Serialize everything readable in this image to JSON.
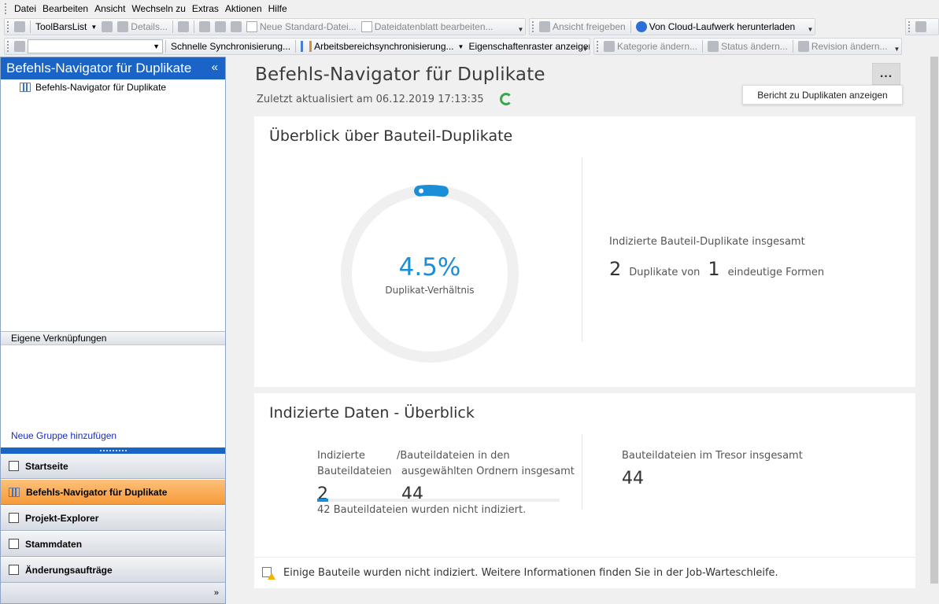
{
  "menu": [
    "Datei",
    "Bearbeiten",
    "Ansicht",
    "Wechseln zu",
    "Extras",
    "Aktionen",
    "Hilfe"
  ],
  "toolbar1": {
    "toolbars_list": "ToolBarsList",
    "details": "Details...",
    "new_standard_file": "Neue Standard-Datei...",
    "edit_datasheet": "Dateidatenblatt bearbeiten...",
    "share_view": "Ansicht freigeben",
    "download_cloud": "Von Cloud-Laufwerk herunterladen"
  },
  "toolbar2": {
    "quick_sync": "Schnelle Synchronisierung...",
    "workspace_sync": "Arbeitsbereichsynchronisierung...",
    "property_grid": "Eigenschaftenraster anzeigen",
    "change_category": "Kategorie ändern...",
    "change_status": "Status ändern...",
    "change_revision": "Revision ändern..."
  },
  "left_panel": {
    "title": "Befehls-Navigator für Duplikate",
    "tree_item": "Befehls-Navigator für Duplikate",
    "shortcuts_header": "Eigene Verknüpfungen",
    "new_group_link": "Neue Gruppe hinzufügen",
    "nav_items": [
      {
        "label": "Startseite",
        "active": false
      },
      {
        "label": "Befehls-Navigator für Duplikate",
        "active": true
      },
      {
        "label": "Projekt-Explorer",
        "active": false
      },
      {
        "label": "Stammdaten",
        "active": false
      },
      {
        "label": "Änderungsaufträge",
        "active": false
      }
    ]
  },
  "main": {
    "title": "Befehls-Navigator für Duplikate",
    "last_updated": "Zuletzt aktualisiert am 06.12.2019 17:13:35",
    "more_button": "...",
    "tooltip": "Bericht zu Duplikaten anzeigen",
    "overview": {
      "title": "Überblick über Bauteil-Duplikate",
      "ratio_value": "4.5%",
      "ratio_fraction": 0.045,
      "ratio_label": "Duplikat-Verhältnis",
      "total_label": "Indizierte Bauteil-Duplikate insgesamt",
      "duplicates_count": "2",
      "duplicates_of": "Duplikate von",
      "unique_count": "1",
      "unique_label": "eindeutige Formen"
    },
    "indexed": {
      "title": "Indizierte Daten - Überblick",
      "indexed_label_line1": "Indizierte",
      "indexed_label_line2": "Bauteildateien",
      "selected_label_line1": "/Bauteildateien in den",
      "selected_label_line2": "ausgewählten Ordnern insgesamt",
      "indexed_count": "2",
      "selected_count": "44",
      "vault_label": "Bauteildateien im Tresor insgesamt",
      "vault_count": "44",
      "progress_fraction": 0.0455,
      "not_indexed_count": "42",
      "not_indexed_text": "Bauteildateien wurden nicht indiziert.",
      "footer_message": "Einige Bauteile wurden nicht indiziert. Weitere Informationen finden Sie in der Job-Warteschleife."
    }
  },
  "colors": {
    "accent_blue": "#1a8ed6",
    "header_blue": "#1a64c8",
    "active_nav": "#f59a3a",
    "refresh_green": "#3aa84a"
  }
}
